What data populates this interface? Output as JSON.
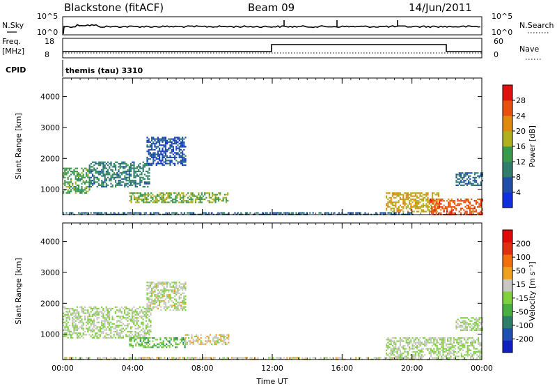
{
  "header": {
    "station": "Blackstone (fitACF)",
    "beam": "Beam 09",
    "date": "14/Jun/2011"
  },
  "strip_panels": {
    "nsky_label": "N.Sky",
    "nsky_ticks": [
      "10^5",
      "10^0"
    ],
    "nsearch_label": "N.Search",
    "nsearch_ticks": [
      "10^5",
      "10^0"
    ],
    "freq_label_1": "Freq.",
    "freq_label_2": "[MHz]",
    "freq_ticks": [
      "18",
      "8"
    ],
    "nave_label": "Nave",
    "nave_ticks": [
      "60",
      "0"
    ],
    "cpid_label": "CPID",
    "cpid_text": "themis (tau) 3310"
  },
  "colors": {
    "power_scale": [
      "#1030e0",
      "#1e4ea8",
      "#2f7d6a",
      "#3a9a4c",
      "#b0b020",
      "#e08a10",
      "#e85010",
      "#e01010"
    ],
    "velocity_scale": [
      "#1020c0",
      "#1e50b0",
      "#2e7e6a",
      "#48b040",
      "#80d040",
      "#c8c8c0",
      "#f0a020",
      "#f07010",
      "#e03010",
      "#e00808"
    ]
  },
  "chart_data": [
    {
      "type": "heatmap",
      "name": "Power",
      "ylabel": "Slant Range [km]",
      "xlabel": "",
      "x_ticks": [
        "00:00",
        "04:00",
        "08:00",
        "12:00",
        "16:00",
        "20:00",
        "00:00"
      ],
      "xlim_hours": [
        0,
        24
      ],
      "y_ticks": [
        "1000",
        "2000",
        "3000",
        "4000"
      ],
      "ylim_km": [
        180,
        4600
      ],
      "colorbar_label": "Power [dB]",
      "colorbar_ticks": [
        "4",
        "8",
        "12",
        "16",
        "20",
        "24",
        "28"
      ],
      "colorbar_range": [
        0,
        32
      ],
      "echo_regions": [
        {
          "t0": 0.0,
          "t1": 1.5,
          "r0": 900,
          "r1": 1700,
          "value": 14
        },
        {
          "t0": 1.5,
          "t1": 5.0,
          "r0": 1100,
          "r1": 1900,
          "value": 10
        },
        {
          "t0": 4.8,
          "t1": 7.0,
          "r0": 1800,
          "r1": 2700,
          "value": 6
        },
        {
          "t0": 3.8,
          "t1": 9.5,
          "r0": 600,
          "r1": 900,
          "value": 16
        },
        {
          "t0": 18.5,
          "t1": 21.5,
          "r0": 300,
          "r1": 900,
          "value": 20
        },
        {
          "t0": 21.0,
          "t1": 24.0,
          "r0": 200,
          "r1": 700,
          "value": 26
        },
        {
          "t0": 22.5,
          "t1": 24.0,
          "r0": 1150,
          "r1": 1550,
          "value": 8
        },
        {
          "t0": 0.0,
          "t1": 20.0,
          "r0": 190,
          "r1": 260,
          "value": 8
        }
      ]
    },
    {
      "type": "heatmap",
      "name": "Velocity",
      "ylabel": "Slant Range [km]",
      "xlabel": "Time UT",
      "x_ticks": [
        "00:00",
        "04:00",
        "08:00",
        "12:00",
        "16:00",
        "20:00",
        "00:00"
      ],
      "xlim_hours": [
        0,
        24
      ],
      "y_ticks": [
        "1000",
        "2000",
        "3000",
        "4000"
      ],
      "ylim_km": [
        180,
        4600
      ],
      "colorbar_label": "Velocity [m s⁻¹]",
      "colorbar_ticks": [
        "-200",
        "-100",
        "-50",
        "-15",
        "15",
        "50",
        "100",
        "200"
      ],
      "colorbar_range": [
        -250,
        250
      ],
      "echo_regions": [
        {
          "t0": 0.0,
          "t1": 5.0,
          "r0": 900,
          "r1": 1900,
          "value": 0
        },
        {
          "t0": 4.8,
          "t1": 7.0,
          "r0": 1800,
          "r1": 2700,
          "value": 10
        },
        {
          "t0": 3.8,
          "t1": 7.0,
          "r0": 600,
          "r1": 900,
          "value": -60
        },
        {
          "t0": 7.0,
          "t1": 9.5,
          "r0": 700,
          "r1": 1000,
          "value": 30
        },
        {
          "t0": 18.5,
          "t1": 24.0,
          "r0": 200,
          "r1": 900,
          "value": 0
        },
        {
          "t0": 22.5,
          "t1": 24.0,
          "r0": 1150,
          "r1": 1550,
          "value": 0
        },
        {
          "t0": 0.0,
          "t1": 20.0,
          "r0": 190,
          "r1": 260,
          "value": 30
        }
      ]
    }
  ]
}
